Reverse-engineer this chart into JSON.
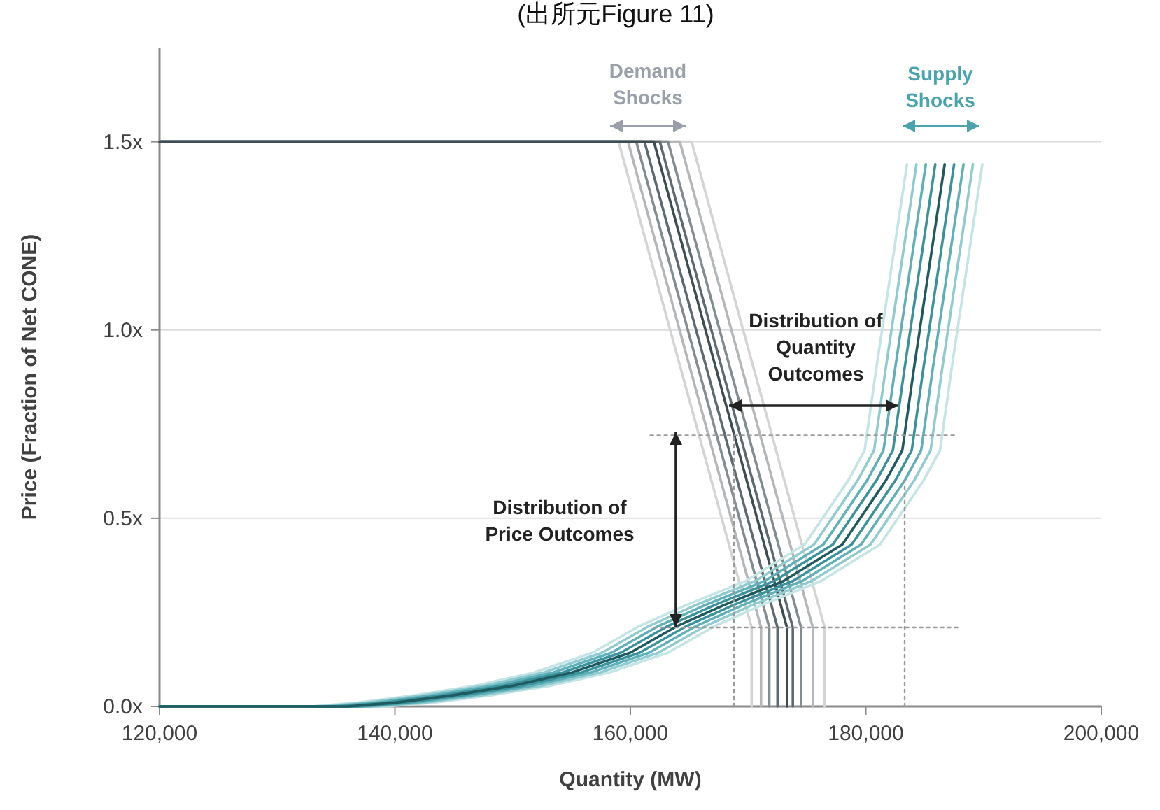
{
  "chart_data": {
    "type": "line",
    "title": "(出所元Figure 11)",
    "xlabel": "Quantity (MW)",
    "ylabel": "Price (Fraction of Net CONE)",
    "xlim": [
      120000,
      200000
    ],
    "ylim": [
      0,
      1.75
    ],
    "xticks": [
      {
        "value": 120000,
        "label": "120,000"
      },
      {
        "value": 140000,
        "label": "140,000"
      },
      {
        "value": 160000,
        "label": "160,000"
      },
      {
        "value": 180000,
        "label": "180,000"
      },
      {
        "value": 200000,
        "label": "200,000"
      }
    ],
    "yticks": [
      {
        "value": 0,
        "label": "0.0x"
      },
      {
        "value": 0.5,
        "label": "0.5x"
      },
      {
        "value": 1.0,
        "label": "1.0x"
      },
      {
        "value": 1.5,
        "label": "1.5x"
      }
    ],
    "grid": "y",
    "marker": "none",
    "line_style": "solid",
    "series": [
      {
        "color": "#d4d4d4",
        "x": [
          120000,
          159000,
          170300,
          170300
        ],
        "values": [
          1.5,
          1.5,
          0.21,
          0
        ]
      },
      {
        "color": "#d4d4d4",
        "x": [
          120000,
          165200,
          176500,
          176500
        ],
        "values": [
          1.5,
          1.5,
          0.21,
          0
        ]
      },
      {
        "color": "#b3b7b9",
        "x": [
          120000,
          159800,
          171100,
          171100
        ],
        "values": [
          1.5,
          1.5,
          0.21,
          0
        ]
      },
      {
        "color": "#b3b7b9",
        "x": [
          120000,
          164200,
          175500,
          175500
        ],
        "values": [
          1.5,
          1.5,
          0.21,
          0
        ]
      },
      {
        "color": "#838c90",
        "x": [
          120000,
          160500,
          171800,
          171800
        ],
        "values": [
          1.5,
          1.5,
          0.21,
          0
        ]
      },
      {
        "color": "#838c90",
        "x": [
          120000,
          163200,
          174500,
          174500
        ],
        "values": [
          1.5,
          1.5,
          0.21,
          0
        ]
      },
      {
        "color": "#5e6a6f",
        "x": [
          120000,
          161200,
          172500,
          172500
        ],
        "values": [
          1.5,
          1.5,
          0.21,
          0
        ]
      },
      {
        "color": "#5e6a6f",
        "x": [
          120000,
          162500,
          173800,
          173800
        ],
        "values": [
          1.5,
          1.5,
          0.21,
          0
        ]
      },
      {
        "color": "#3f4d52",
        "x": [
          120000,
          162000,
          173300,
          173300
        ],
        "values": [
          1.5,
          1.5,
          0.21,
          0
        ]
      },
      {
        "color": "#c4e4e6",
        "x": [
          120000,
          132800,
          136800,
          141800,
          146800,
          151800,
          156800,
          160800,
          164800,
          169800,
          174800,
          178500,
          179900,
          180900,
          183500
        ],
        "values": [
          0,
          0,
          0.01,
          0.03,
          0.055,
          0.09,
          0.143,
          0.214,
          0.27,
          0.333,
          0.43,
          0.6,
          0.68,
          0.9,
          1.44
        ]
      },
      {
        "color": "#c4e4e6",
        "x": [
          120000,
          139200,
          143200,
          148200,
          153200,
          158200,
          163200,
          167200,
          171200,
          176200,
          181200,
          184900,
          186300,
          187300,
          189900
        ],
        "values": [
          0,
          0,
          0.01,
          0.03,
          0.055,
          0.09,
          0.143,
          0.214,
          0.27,
          0.333,
          0.43,
          0.6,
          0.68,
          0.9,
          1.44
        ]
      },
      {
        "color": "#8fcbd0",
        "x": [
          120000,
          133600,
          137600,
          142600,
          147600,
          152600,
          157600,
          161600,
          165600,
          170600,
          175600,
          179300,
          180700,
          181700,
          184300
        ],
        "values": [
          0,
          0,
          0.01,
          0.03,
          0.055,
          0.09,
          0.143,
          0.214,
          0.27,
          0.333,
          0.43,
          0.6,
          0.68,
          0.9,
          1.44
        ]
      },
      {
        "color": "#8fcbd0",
        "x": [
          120000,
          138400,
          142400,
          147400,
          152400,
          157400,
          162400,
          166400,
          170400,
          175400,
          180400,
          184100,
          185500,
          186500,
          189100
        ],
        "values": [
          0,
          0,
          0.01,
          0.03,
          0.055,
          0.09,
          0.143,
          0.214,
          0.27,
          0.333,
          0.43,
          0.6,
          0.68,
          0.9,
          1.44
        ]
      },
      {
        "color": "#5fb0b8",
        "x": [
          120000,
          134400,
          138400,
          143400,
          148400,
          153400,
          158400,
          162400,
          166400,
          171400,
          176400,
          180100,
          181500,
          182500,
          185100
        ],
        "values": [
          0,
          0,
          0.01,
          0.03,
          0.055,
          0.09,
          0.143,
          0.214,
          0.27,
          0.333,
          0.43,
          0.6,
          0.68,
          0.9,
          1.44
        ]
      },
      {
        "color": "#5fb0b8",
        "x": [
          120000,
          137600,
          141600,
          146600,
          151600,
          156600,
          161600,
          165600,
          169600,
          174600,
          179600,
          183300,
          184700,
          185700,
          188300
        ],
        "values": [
          0,
          0,
          0.01,
          0.03,
          0.055,
          0.09,
          0.143,
          0.214,
          0.27,
          0.333,
          0.43,
          0.6,
          0.68,
          0.9,
          1.44
        ]
      },
      {
        "color": "#3a939c",
        "x": [
          120000,
          135200,
          139200,
          144200,
          149200,
          154200,
          159200,
          163200,
          167200,
          172200,
          177200,
          180900,
          182300,
          183300,
          185900
        ],
        "values": [
          0,
          0,
          0.01,
          0.03,
          0.055,
          0.09,
          0.143,
          0.214,
          0.27,
          0.333,
          0.43,
          0.6,
          0.68,
          0.9,
          1.44
        ]
      },
      {
        "color": "#3a939c",
        "x": [
          120000,
          136800,
          140800,
          145800,
          150800,
          155800,
          160800,
          164800,
          168800,
          173800,
          178800,
          182500,
          183900,
          184900,
          187500
        ],
        "values": [
          0,
          0,
          0.01,
          0.03,
          0.055,
          0.09,
          0.143,
          0.214,
          0.27,
          0.333,
          0.43,
          0.6,
          0.68,
          0.9,
          1.44
        ]
      },
      {
        "color": "#1f5a60",
        "x": [
          120000,
          136000,
          140000,
          145000,
          150000,
          155000,
          160000,
          164000,
          168000,
          173000,
          178000,
          181700,
          183100,
          184100,
          186700
        ],
        "values": [
          0,
          0,
          0.01,
          0.03,
          0.055,
          0.09,
          0.143,
          0.214,
          0.27,
          0.333,
          0.43,
          0.6,
          0.68,
          0.9,
          1.44
        ]
      },
      {
        "color": "#9a9a9a",
        "line_style": "dotted",
        "x": [
          161700,
          187600
        ],
        "values": [
          0.72,
          0.72
        ]
      },
      {
        "color": "#9a9a9a",
        "line_style": "dotted",
        "x": [
          162000,
          188000
        ],
        "values": [
          0.21,
          0.21
        ]
      },
      {
        "color": "#9a9a9a",
        "line_style": "dotted",
        "x": [
          168800,
          168800
        ],
        "values": [
          0,
          0.72
        ]
      },
      {
        "color": "#9a9a9a",
        "line_style": "dotted",
        "x": [
          183300,
          183300
        ],
        "values": [
          0,
          0.6
        ]
      }
    ],
    "annotations": [
      "Demand\nShocks",
      "Supply\nShocks",
      "Distribution of\nQuantity\nOutcomes",
      "Distribution of\nPrice Outcomes"
    ]
  }
}
